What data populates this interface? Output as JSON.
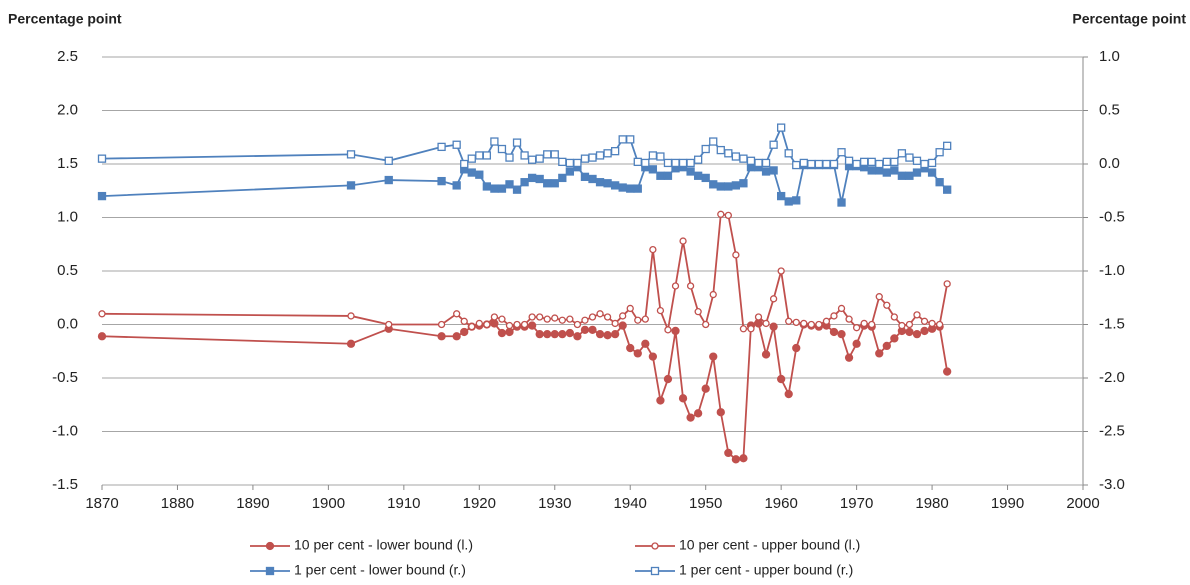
{
  "chart_data": {
    "type": "line",
    "y_label": "Percentage point",
    "y2_label": "Percentage point",
    "x": [
      1870,
      1903,
      1908,
      1915,
      1917,
      1918,
      1919,
      1920,
      1921,
      1922,
      1923,
      1924,
      1925,
      1926,
      1927,
      1928,
      1929,
      1930,
      1931,
      1932,
      1933,
      1934,
      1935,
      1936,
      1937,
      1938,
      1939,
      1940,
      1941,
      1942,
      1943,
      1944,
      1945,
      1946,
      1947,
      1948,
      1949,
      1950,
      1951,
      1952,
      1953,
      1954,
      1955,
      1956,
      1957,
      1958,
      1959,
      1960,
      1961,
      1962,
      1963,
      1964,
      1965,
      1966,
      1967,
      1968,
      1969,
      1970,
      1971,
      1972,
      1973,
      1974,
      1975,
      1976,
      1977,
      1978,
      1979,
      1980,
      1981,
      1982
    ],
    "xlim": [
      1870,
      2000
    ],
    "xticks": [
      1870,
      1880,
      1890,
      1900,
      1910,
      1920,
      1930,
      1940,
      1950,
      1960,
      1970,
      1980,
      1990,
      2000
    ],
    "ylim": [
      -1.5,
      2.5
    ],
    "yticks": [
      -1.5,
      {
        "value": -1,
        "label": "-1.0"
      },
      -0.5,
      {
        "value": 0,
        "label": "0.0"
      },
      0.5,
      {
        "value": 1,
        "label": "1.0"
      },
      1.5,
      {
        "value": 2,
        "label": "2.0"
      },
      2.5
    ],
    "y2lim": [
      -3,
      1
    ],
    "y2ticks": [
      {
        "value": -3,
        "label": "-3.0"
      },
      -2.5,
      {
        "value": -2,
        "label": "-2.0"
      },
      -1.5,
      {
        "value": -1,
        "label": "-1.0"
      },
      -0.5,
      {
        "value": 0,
        "label": "0.0"
      },
      0.5,
      {
        "value": 1,
        "label": "1.0"
      }
    ],
    "grid": true,
    "legend": "bottom",
    "series": [
      {
        "name": "10 per cent - lower bound (l.)",
        "color": "#c0504d",
        "marker": "circle",
        "filled": true,
        "values": [
          -0.11,
          -0.18,
          -0.04,
          -0.11,
          -0.11,
          -0.07,
          -0.02,
          -0.01,
          0,
          0.01,
          -0.08,
          -0.07,
          -0.02,
          -0.02,
          -0.01,
          -0.09,
          -0.09,
          -0.09,
          -0.09,
          -0.08,
          -0.11,
          -0.05,
          -0.05,
          -0.09,
          -0.1,
          -0.09,
          -0.01,
          -0.22,
          -0.27,
          -0.18,
          -0.3,
          -0.71,
          -0.51,
          -0.06,
          -0.69,
          -0.87,
          -0.83,
          -0.6,
          -0.3,
          -0.82,
          -1.2,
          -1.26,
          -1.25,
          -0.01,
          0.01,
          -0.28,
          -0.02,
          -0.51,
          -0.65,
          -0.22,
          0,
          -0.01,
          -0.02,
          -0.01,
          -0.07,
          -0.09,
          -0.31,
          -0.18,
          -0.01,
          -0.02,
          -0.27,
          -0.2,
          -0.13,
          -0.06,
          -0.07,
          -0.09,
          -0.06,
          -0.04,
          -0.02,
          -0.44
        ]
      },
      {
        "name": "10 per cent - upper bound (l.)",
        "color": "#c0504d",
        "marker": "circle",
        "filled": false,
        "values": [
          0.1,
          0.08,
          0,
          0,
          0.1,
          0.03,
          -0.02,
          0.01,
          0,
          0.07,
          0.05,
          -0.01,
          0,
          0,
          0.07,
          0.07,
          0.05,
          0.06,
          0.04,
          0.05,
          0,
          0.04,
          0.07,
          0.1,
          0.07,
          0.01,
          0.08,
          0.15,
          0.04,
          0.05,
          0.7,
          0.13,
          -0.05,
          0.36,
          0.78,
          0.36,
          0.12,
          0,
          0.28,
          1.03,
          1.02,
          0.65,
          -0.04,
          -0.04,
          0.07,
          0.01,
          0.24,
          0.5,
          0.03,
          0.02,
          0.01,
          0,
          0,
          0.03,
          0.08,
          0.15,
          0.05,
          -0.03,
          0.01,
          0,
          0.26,
          0.18,
          0.07,
          -0.01,
          0,
          0.09,
          0.03,
          0.01,
          0,
          0.38
        ]
      },
      {
        "name": "1 per cent - lower bound (r.)",
        "color": "#4f81bd",
        "marker": "square",
        "filled": true,
        "axis": "y2",
        "values": [
          -0.3,
          -0.2,
          -0.15,
          -0.16,
          -0.2,
          -0.05,
          -0.08,
          -0.1,
          -0.21,
          -0.23,
          -0.23,
          -0.19,
          -0.24,
          -0.17,
          -0.13,
          -0.14,
          -0.18,
          -0.18,
          -0.13,
          -0.07,
          -0.03,
          -0.12,
          -0.14,
          -0.17,
          -0.18,
          -0.2,
          -0.22,
          -0.23,
          -0.23,
          -0.03,
          -0.05,
          -0.11,
          -0.11,
          -0.04,
          -0.03,
          -0.07,
          -0.11,
          -0.13,
          -0.19,
          -0.21,
          -0.21,
          -0.2,
          -0.18,
          -0.03,
          -0.03,
          -0.07,
          -0.06,
          -0.3,
          -0.35,
          -0.34,
          -0.01,
          -0.01,
          -0.01,
          -0.01,
          -0.01,
          -0.36,
          -0.02,
          -0.02,
          -0.03,
          -0.06,
          -0.06,
          -0.08,
          -0.06,
          -0.11,
          -0.11,
          -0.08,
          -0.04,
          -0.08,
          -0.17,
          -0.24
        ]
      },
      {
        "name": "1 per cent - upper bound (r.)",
        "color": "#4f81bd",
        "marker": "square",
        "filled": false,
        "axis": "y2",
        "values": [
          0.05,
          0.09,
          0.03,
          0.16,
          0.18,
          0,
          0.05,
          0.08,
          0.08,
          0.21,
          0.14,
          0.06,
          0.2,
          0.08,
          0.04,
          0.05,
          0.09,
          0.09,
          0.02,
          0.01,
          0.01,
          0.05,
          0.06,
          0.08,
          0.1,
          0.12,
          0.23,
          0.23,
          0.02,
          0.01,
          0.08,
          0.07,
          0.01,
          0.01,
          0.01,
          0.01,
          0.04,
          0.14,
          0.21,
          0.13,
          0.1,
          0.07,
          0.05,
          0.03,
          0.01,
          0.01,
          0.18,
          0.34,
          0.1,
          -0.01,
          0.01,
          0,
          0,
          0,
          0,
          0.11,
          0.03,
          0,
          0.02,
          0.02,
          0,
          0.02,
          0.02,
          0.1,
          0.06,
          0.03,
          0,
          0.01,
          0.11,
          0.17
        ]
      }
    ]
  }
}
